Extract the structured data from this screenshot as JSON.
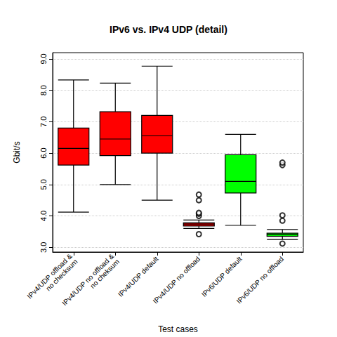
{
  "chart_data": {
    "type": "boxplot",
    "title": "IPv6 vs. IPv4 UDP (detail)",
    "xlabel": "Test cases",
    "ylabel": "Gbit/s",
    "categories": [
      "IPv4/UDP offload &\nno checksum",
      "IPv4/UDP no offload &\nno cheksum",
      "IPv4/UDP default",
      "IPv4/UDP no offload",
      "IPv6/UDP default",
      "IPv6/UDP no offload"
    ],
    "boxes": [
      [
        4.12,
        5.62,
        6.15,
        6.8,
        8.33
      ],
      [
        5.0,
        5.92,
        6.45,
        7.32,
        8.23
      ],
      [
        4.5,
        6.0,
        6.55,
        7.2,
        8.77
      ],
      [
        3.6,
        3.68,
        3.74,
        3.78,
        3.87
      ],
      [
        3.7,
        4.73,
        5.1,
        5.95,
        6.6
      ],
      [
        3.25,
        3.35,
        3.4,
        3.45,
        3.57
      ]
    ],
    "outliers": [
      [],
      [],
      [],
      [
        3.42,
        4.0,
        4.07,
        4.1,
        4.5,
        4.68
      ],
      [],
      [
        3.12,
        3.85,
        4.02,
        5.62,
        5.7
      ]
    ],
    "colors": [
      "#ff0000",
      "#ff0000",
      "#ff0000",
      "#ff0000",
      "#00ff00",
      "#00ff00"
    ],
    "ylim": [
      2.85,
      9.2
    ],
    "yticks": [
      {
        "value": 3,
        "label": "3.0"
      },
      {
        "value": 4,
        "label": "4.0"
      },
      {
        "value": 5,
        "label": "5.0"
      },
      {
        "value": 6,
        "label": "6.0"
      },
      {
        "value": 7,
        "label": "7.0"
      },
      {
        "value": 8,
        "label": "8.0"
      },
      {
        "value": 9,
        "label": "9.0"
      }
    ],
    "grid": true
  }
}
